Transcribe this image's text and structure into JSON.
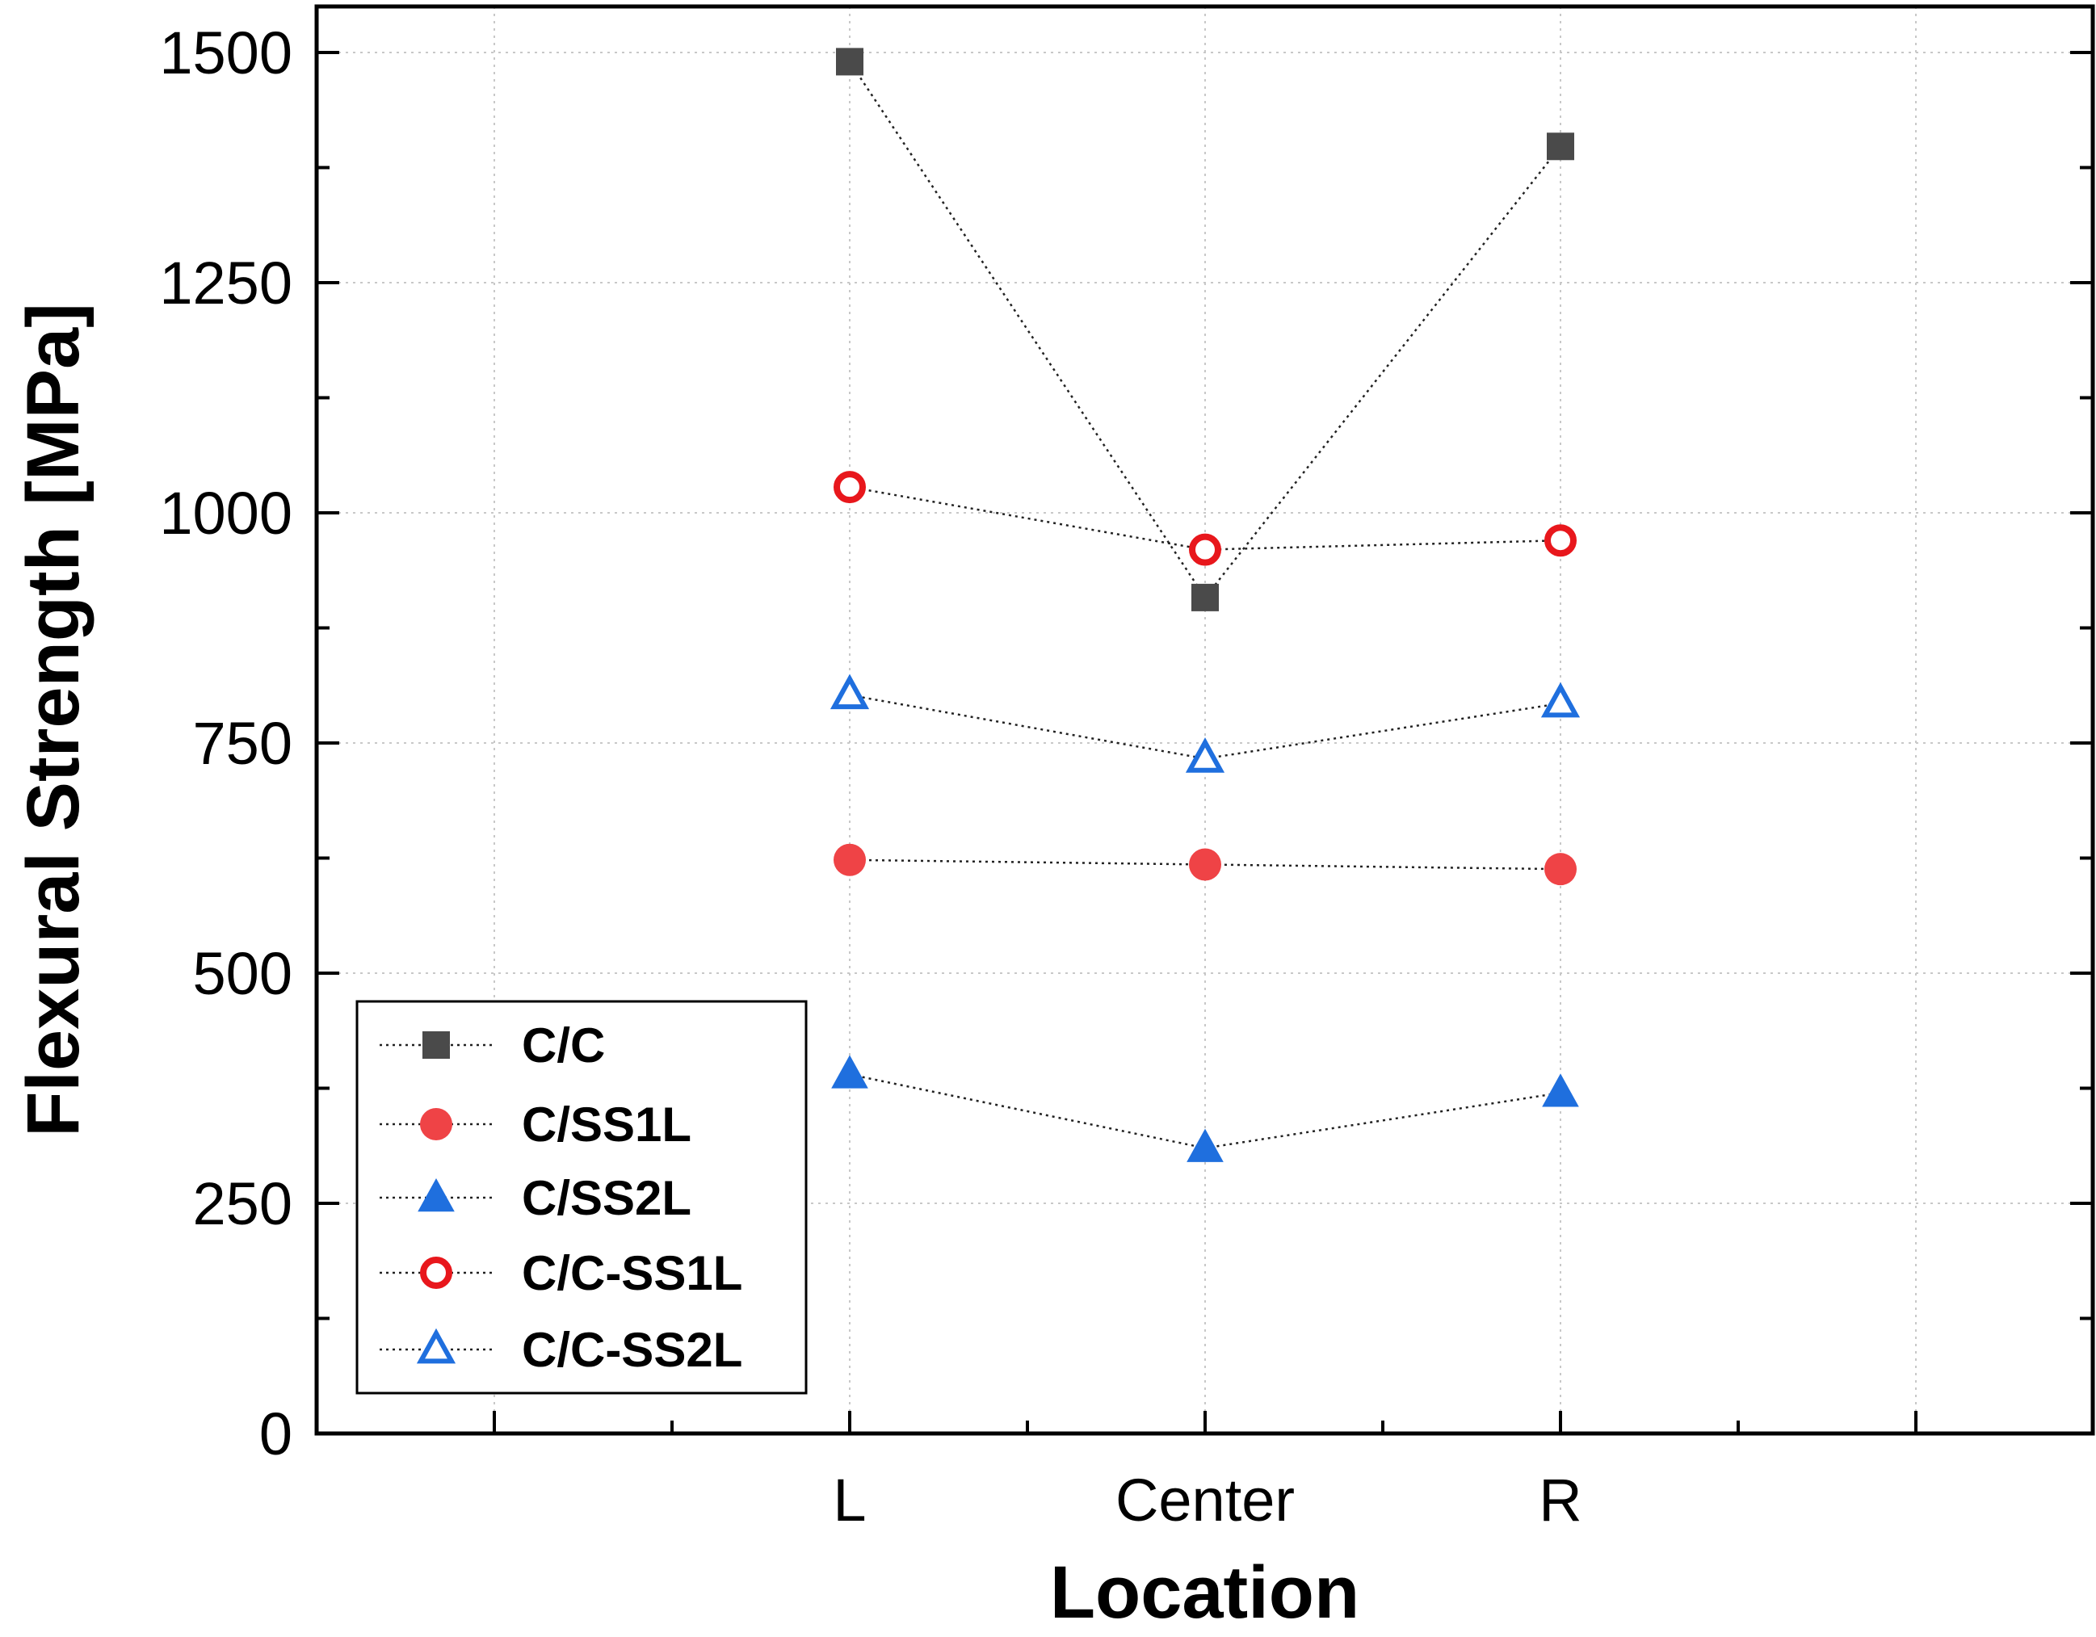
{
  "chart_data": {
    "type": "line",
    "title": "",
    "xlabel": "Location",
    "ylabel": "Flexural Strength [MPa]",
    "categories": [
      "L",
      "Center",
      "R"
    ],
    "ylim": [
      0,
      1550
    ],
    "yticks": [
      0,
      250,
      500,
      750,
      1000,
      1250,
      1500
    ],
    "grid": true,
    "legend_position": "bottom-left",
    "series": [
      {
        "name": "C/C",
        "marker": "square",
        "filled": true,
        "color": "#4a4a4a",
        "values": [
          1490,
          908,
          1398
        ]
      },
      {
        "name": "C/SS1L",
        "marker": "circle",
        "filled": true,
        "color": "#ef4346",
        "values": [
          623,
          618,
          613
        ]
      },
      {
        "name": "C/SS2L",
        "marker": "triangle",
        "filled": true,
        "color": "#1f6fde",
        "values": [
          390,
          310,
          370
        ]
      },
      {
        "name": "C/C-SS1L",
        "marker": "circle",
        "filled": false,
        "color": "#e8171c",
        "values": [
          1028,
          960,
          970
        ]
      },
      {
        "name": "C/C-SS2L",
        "marker": "triangle",
        "filled": false,
        "color": "#1f6fde",
        "values": [
          802,
          733,
          793
        ]
      }
    ]
  }
}
